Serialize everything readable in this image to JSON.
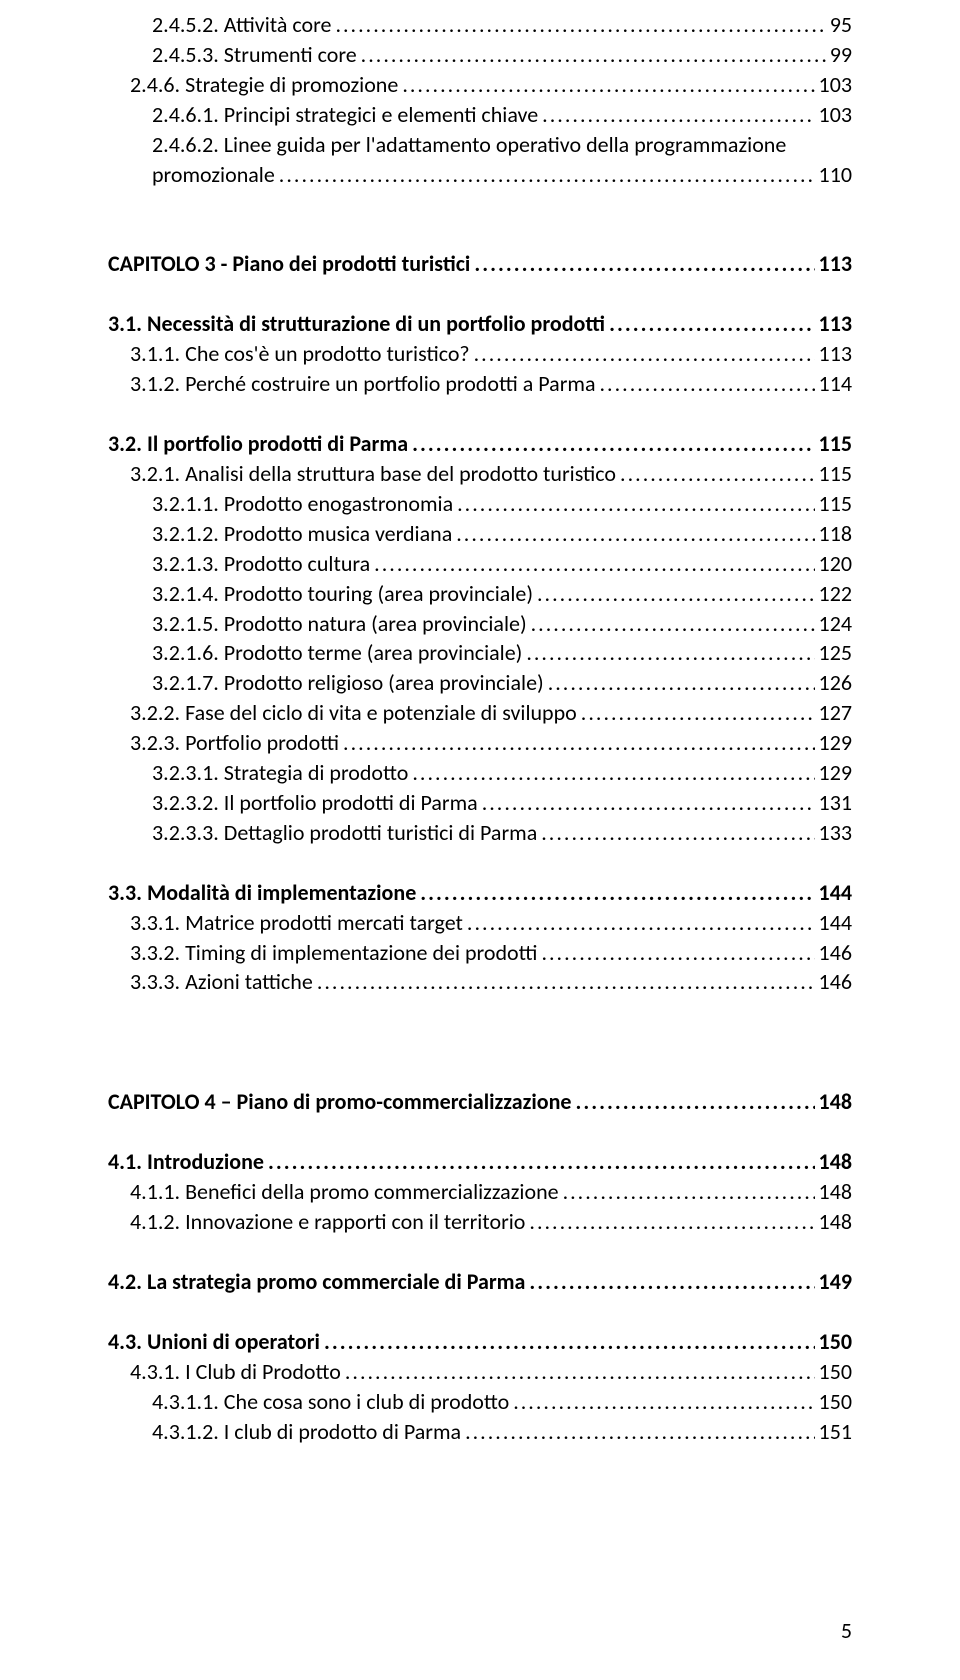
{
  "typography": {
    "font_family": "Calibri",
    "font_size_pt": 12,
    "line_height": 1.36,
    "text_color": "#000000",
    "background_color": "#ffffff"
  },
  "page_number": "5",
  "toc": [
    {
      "label": "2.4.5.2. Attività core",
      "page": "95",
      "indent": 2,
      "bold": false
    },
    {
      "label": "2.4.5.3. Strumenti core",
      "page": "99",
      "indent": 2,
      "bold": false
    },
    {
      "label": "2.4.6. Strategie di promozione",
      "page": "103",
      "indent": 1,
      "bold": false
    },
    {
      "label": "2.4.6.1. Principi strategici e elementi chiave",
      "page": "103",
      "indent": 2,
      "bold": false
    },
    {
      "label": "2.4.6.2. Linee guida per l'adattamento operativo della programmazione promozionale",
      "page": "110",
      "indent": 2,
      "bold": false,
      "wrap_second_line": "promozionale",
      "wrap_first_line": "2.4.6.2. Linee guida per l'adattamento operativo della programmazione"
    },
    {
      "gap": "xl"
    },
    {
      "label": "CAPITOLO 3 - Piano dei prodotti turistici",
      "page": "113",
      "indent": 0,
      "bold": true
    },
    {
      "gap": "lg"
    },
    {
      "label": "3.1. Necessità di strutturazione di un portfolio prodotti",
      "page": "113",
      "indent": 0,
      "bold": true
    },
    {
      "label": "3.1.1. Che cos'è un prodotto turistico?",
      "page": "113",
      "indent": 1,
      "bold": false
    },
    {
      "label": "3.1.2. Perché costruire un portfolio prodotti a Parma",
      "page": "114",
      "indent": 1,
      "bold": false
    },
    {
      "gap": "lg"
    },
    {
      "label": "3.2. Il portfolio prodotti di Parma",
      "page": "115",
      "indent": 0,
      "bold": true
    },
    {
      "label": "3.2.1. Analisi della struttura base del prodotto turistico",
      "page": "115",
      "indent": 1,
      "bold": false
    },
    {
      "label": "3.2.1.1. Prodotto enogastronomia",
      "page": "115",
      "indent": 2,
      "bold": false
    },
    {
      "label": "3.2.1.2. Prodotto musica verdiana",
      "page": "118",
      "indent": 2,
      "bold": false
    },
    {
      "label": "3.2.1.3. Prodotto cultura",
      "page": "120",
      "indent": 2,
      "bold": false
    },
    {
      "label": "3.2.1.4. Prodotto touring (area provinciale)",
      "page": "122",
      "indent": 2,
      "bold": false
    },
    {
      "label": "3.2.1.5. Prodotto natura (area provinciale)",
      "page": "124",
      "indent": 2,
      "bold": false
    },
    {
      "label": "3.2.1.6. Prodotto terme (area provinciale)",
      "page": "125",
      "indent": 2,
      "bold": false
    },
    {
      "label": "3.2.1.7. Prodotto religioso (area provinciale)",
      "page": "126",
      "indent": 2,
      "bold": false
    },
    {
      "label": "3.2.2. Fase del ciclo di vita e potenziale di sviluppo",
      "page": "127",
      "indent": 1,
      "bold": false
    },
    {
      "label": "3.2.3. Portfolio prodotti",
      "page": "129",
      "indent": 1,
      "bold": false
    },
    {
      "label": "3.2.3.1. Strategia di prodotto",
      "page": "129",
      "indent": 2,
      "bold": false
    },
    {
      "label": "3.2.3.2. Il portfolio prodotti di Parma",
      "page": "131",
      "indent": 2,
      "bold": false
    },
    {
      "label": "3.2.3.3. Dettaglio prodotti turistici di Parma",
      "page": "133",
      "indent": 2,
      "bold": false
    },
    {
      "gap": "lg"
    },
    {
      "label": "3.3. Modalità di implementazione",
      "page": "144",
      "indent": 0,
      "bold": true
    },
    {
      "label": "3.3.1. Matrice prodotti mercati target",
      "page": "144",
      "indent": 1,
      "bold": false
    },
    {
      "label": "3.3.2. Timing di implementazione dei prodotti",
      "page": "146",
      "indent": 1,
      "bold": false
    },
    {
      "label": "3.3.3. Azioni tattiche",
      "page": "146",
      "indent": 1,
      "bold": false
    },
    {
      "gap": "xl"
    },
    {
      "gap": "lg"
    },
    {
      "label": "CAPITOLO 4 – Piano di promo-commercializzazione",
      "page": "148",
      "indent": 0,
      "bold": true
    },
    {
      "gap": "lg"
    },
    {
      "label": "4.1. Introduzione",
      "page": "148",
      "indent": 0,
      "bold": true
    },
    {
      "label": "4.1.1. Benefici della promo commercializzazione",
      "page": "148",
      "indent": 1,
      "bold": false
    },
    {
      "label": "4.1.2. Innovazione e rapporti con il territorio",
      "page": "148",
      "indent": 1,
      "bold": false
    },
    {
      "gap": "lg"
    },
    {
      "label": "4.2. La strategia promo commerciale di Parma",
      "page": "149",
      "indent": 0,
      "bold": true
    },
    {
      "gap": "lg"
    },
    {
      "label": "4.3. Unioni di operatori",
      "page": "150",
      "indent": 0,
      "bold": true
    },
    {
      "label": "4.3.1. I Club di Prodotto",
      "page": "150",
      "indent": 1,
      "bold": false
    },
    {
      "label": "4.3.1.1. Che cosa sono i club di prodotto",
      "page": "150",
      "indent": 2,
      "bold": false
    },
    {
      "label": "4.3.1.2. I club di prodotto di Parma",
      "page": "151",
      "indent": 2,
      "bold": false
    }
  ]
}
